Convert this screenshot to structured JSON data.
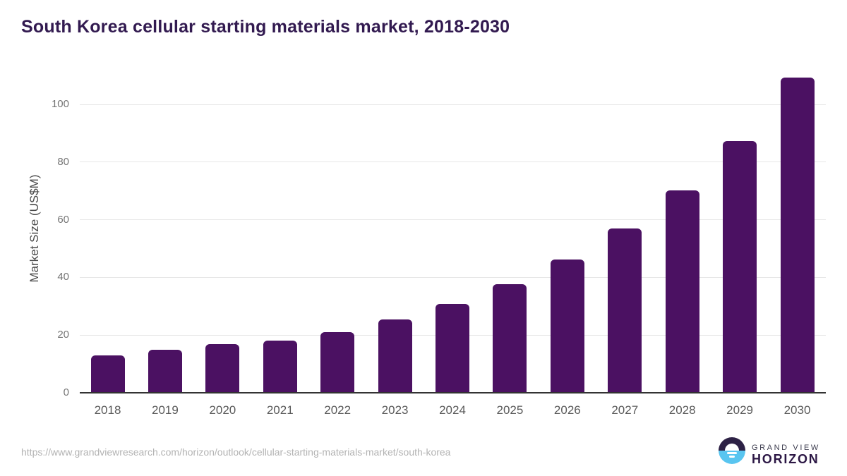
{
  "title": "South Korea cellular starting materials market, 2018-2030",
  "chart_data": {
    "type": "bar",
    "title": "South Korea cellular starting materials market, 2018-2030",
    "categories": [
      "2018",
      "2019",
      "2020",
      "2021",
      "2022",
      "2023",
      "2024",
      "2025",
      "2026",
      "2027",
      "2028",
      "2029",
      "2030"
    ],
    "values": [
      13.0,
      15.0,
      16.8,
      18.2,
      21.1,
      25.5,
      30.7,
      37.7,
      46.3,
      57.0,
      70.1,
      87.4,
      109.3
    ],
    "xlabel": "",
    "ylabel": "Market Size (US$M)",
    "ylim": [
      0,
      113
    ],
    "yticks": [
      0,
      20,
      40,
      60,
      80,
      100
    ],
    "grid": "horizontal",
    "legend": "none",
    "bar_color": "#4b1162"
  },
  "colors": {
    "title_text": "#321a50",
    "bar": "#4b1162",
    "gridline": "#e7e7e7",
    "axis_line": "#333333",
    "y_tick_text": "#757575",
    "x_label_text": "#595959",
    "url_text": "#b3b3b3",
    "logo_top_half": "#2d2145",
    "logo_bottom_half": "#59c5f0"
  },
  "footer": {
    "source_url": "https://www.grandviewresearch.com/horizon/outlook/cellular-starting-materials-market/south-korea",
    "logo": {
      "line1": "GRAND VIEW",
      "line2": "HORIZON",
      "icon": "horizon-sun-icon"
    }
  }
}
